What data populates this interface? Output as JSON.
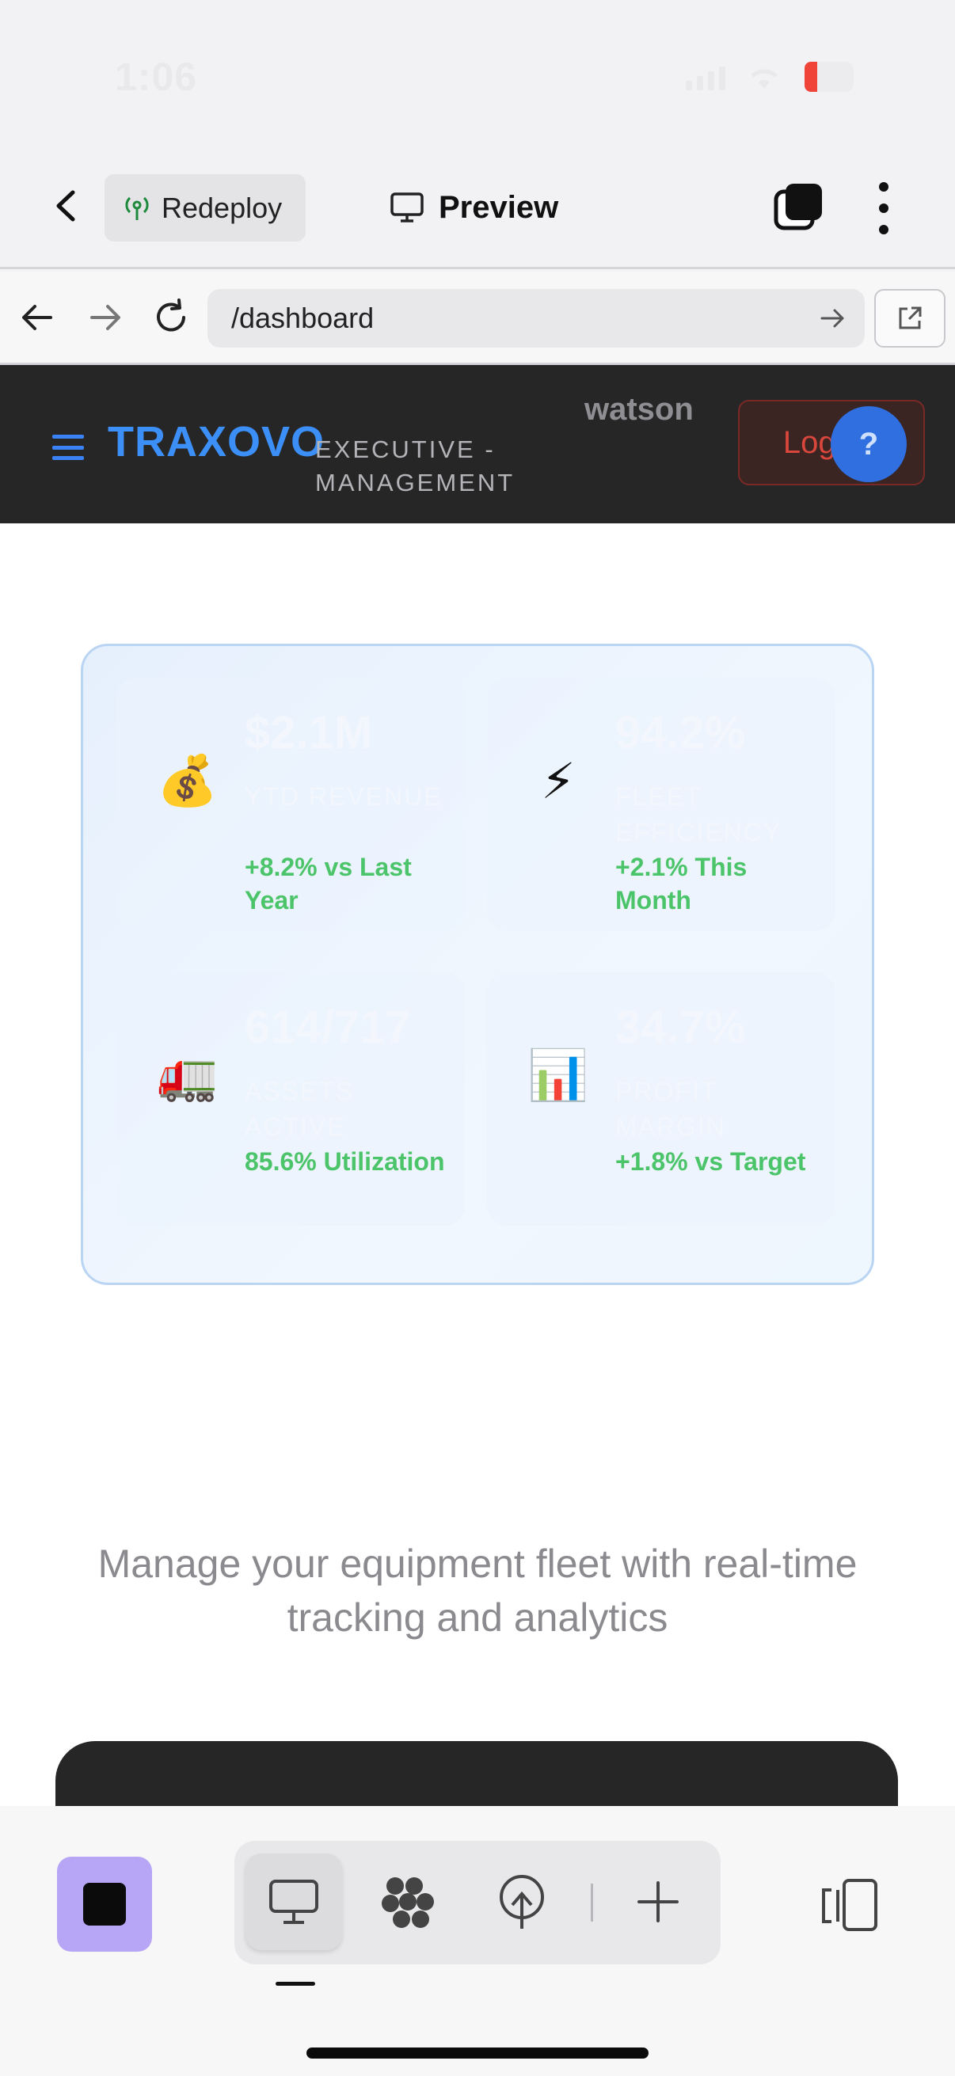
{
  "status_bar": {
    "time": "1:06"
  },
  "toolbar": {
    "redeploy_label": "Redeploy",
    "preview_label": "Preview"
  },
  "browser": {
    "url": "/dashboard"
  },
  "header": {
    "brand": "TRAXOVO",
    "subtitle": "EXECUTIVE - MANAGEMENT",
    "username": "watson",
    "logout_label": "Logout",
    "help_label": "?"
  },
  "kpis": [
    {
      "icon": "money-bag-icon",
      "emoji": "💰",
      "value": "$2.1M",
      "label": "YTD REVENUE",
      "trend": "+8.2% vs Last Year"
    },
    {
      "icon": "lightning-icon",
      "emoji": "⚡",
      "value": "94.2%",
      "label": "FLEET EFFICIENCY",
      "trend": "+2.1% This Month"
    },
    {
      "icon": "truck-icon",
      "emoji": "🚛",
      "value": "614/717",
      "label": "ASSETS ACTIVE",
      "trend": "85.6% Utilization"
    },
    {
      "icon": "bar-chart-icon",
      "emoji": "📊",
      "value": "34.7%",
      "label": "PROFIT MARGIN",
      "trend": "+1.8% vs Target"
    }
  ],
  "tagline": "Manage your equipment fleet with real-time tracking and analytics",
  "colors": {
    "brand_blue": "#3b8ff6",
    "trend_green": "#4cc46a",
    "logout_red": "#d9463b",
    "stop_purple": "#b7a6f6",
    "header_dark": "#262627"
  }
}
